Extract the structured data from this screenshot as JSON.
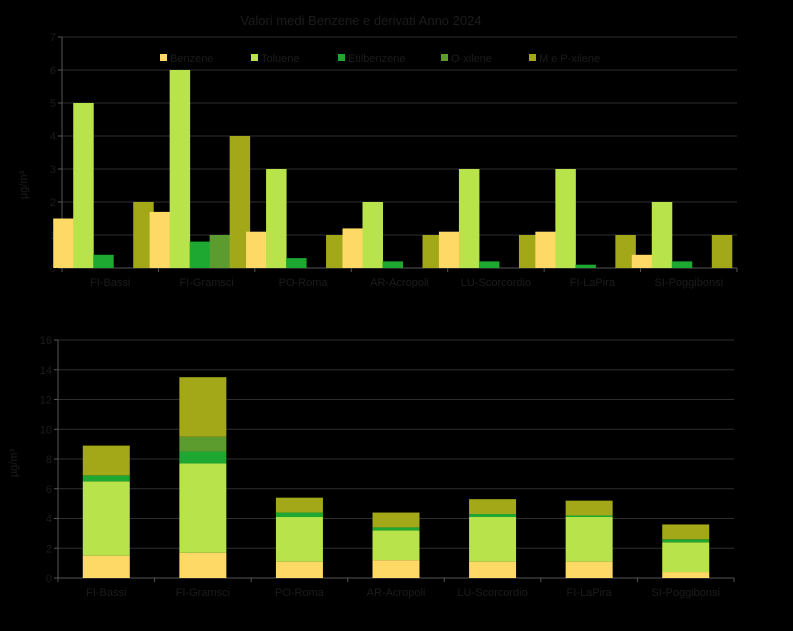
{
  "title": "Valori medi Benzene e derivati  Anno 2024",
  "colors": {
    "background": "#000000",
    "grid": "#2e2e2e",
    "axis": "#555555",
    "text": "#1c1c1c"
  },
  "chart_data": [
    {
      "type": "bar",
      "mode": "grouped",
      "title": "Valori medi Benzene e derivati  Anno 2024",
      "ylabel": "µg/m³",
      "xlabel": "",
      "ylim": [
        0,
        7
      ],
      "yticks": [
        0,
        1,
        2,
        3,
        4,
        5,
        6,
        7
      ],
      "grid": true,
      "legend": "top",
      "categories": [
        "FI-Bassi",
        "FI-Gramsci",
        "PO-Roma",
        "AR-Acropoli",
        "LU-Scorcordio",
        "FI-LaPira",
        "SI-Poggibonsi"
      ],
      "series": [
        {
          "name": "Benzene",
          "color": "#ffd966",
          "values": [
            1.5,
            1.7,
            1.1,
            1.2,
            1.1,
            1.1,
            0.4
          ]
        },
        {
          "name": "Toluene",
          "color": "#b9e34a",
          "values": [
            5,
            6,
            3,
            2,
            3,
            3,
            2
          ]
        },
        {
          "name": "Etilbenzene",
          "color": "#1ea832",
          "values": [
            0.4,
            0.8,
            0.3,
            0.2,
            0.2,
            0.1,
            0.2
          ]
        },
        {
          "name": "O-xilene",
          "color": "#5c9c2e",
          "values": [
            0,
            1,
            0,
            0,
            0,
            0,
            0
          ]
        },
        {
          "name": "M e P-xilene",
          "color": "#a3a818",
          "values": [
            2,
            4,
            1,
            1,
            1,
            1,
            1
          ]
        }
      ]
    },
    {
      "type": "bar",
      "mode": "stacked",
      "title": "",
      "ylabel": "µg/m³",
      "xlabel": "",
      "ylim": [
        0,
        16
      ],
      "yticks": [
        0,
        2,
        4,
        6,
        8,
        10,
        12,
        14,
        16
      ],
      "grid": true,
      "categories": [
        "FI-Bassi",
        "FI-Gramsci",
        "PO-Roma",
        "AR-Acropoli",
        "LU-Scorcordio",
        "FI-LaPira",
        "SI-Poggibonsi"
      ],
      "series": [
        {
          "name": "Benzene",
          "color": "#ffd966",
          "values": [
            1.5,
            1.7,
            1.1,
            1.2,
            1.1,
            1.1,
            0.4
          ]
        },
        {
          "name": "Toluene",
          "color": "#b9e34a",
          "values": [
            5,
            6,
            3,
            2,
            3,
            3,
            2
          ]
        },
        {
          "name": "Etilbenzene",
          "color": "#1ea832",
          "values": [
            0.4,
            0.8,
            0.3,
            0.2,
            0.2,
            0.1,
            0.2
          ]
        },
        {
          "name": "O-xilene",
          "color": "#5c9c2e",
          "values": [
            0,
            1,
            0,
            0,
            0,
            0,
            0
          ]
        },
        {
          "name": "M e P-xilene",
          "color": "#a3a818",
          "values": [
            2,
            4,
            1,
            1,
            1,
            1,
            1
          ]
        }
      ]
    }
  ]
}
